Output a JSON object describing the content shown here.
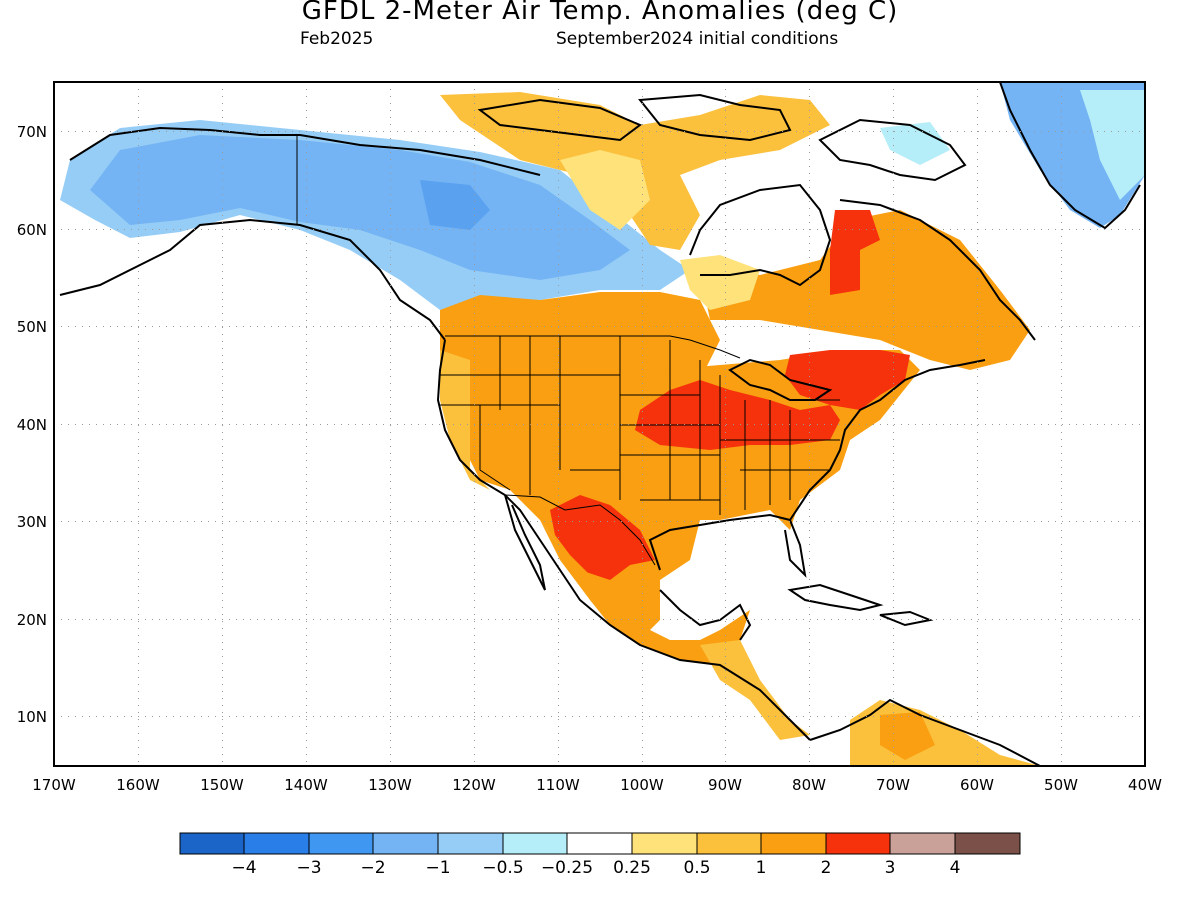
{
  "header": {
    "title": "GFDL 2-Meter Air Temp. Anomalies (deg C)",
    "valid_month": "Feb2025",
    "init": "September2024 initial conditions"
  },
  "map": {
    "lon_range": [
      -170,
      -40
    ],
    "lat_range": [
      5,
      75
    ],
    "lat_ticks": [
      "10N",
      "20N",
      "30N",
      "40N",
      "50N",
      "60N",
      "70N"
    ],
    "lon_ticks": [
      "170W",
      "160W",
      "150W",
      "140W",
      "130W",
      "120W",
      "110W",
      "100W",
      "90W",
      "80W",
      "70W",
      "60W",
      "50W",
      "40W"
    ],
    "grid": "dotted"
  },
  "colorbar": {
    "colors": [
      "#1b64c8",
      "#2a7ee8",
      "#3f97f2",
      "#74b4f4",
      "#96cdf6",
      "#b5eef8",
      "#ffffff",
      "#ffe27a",
      "#fbc03c",
      "#f99f11",
      "#f5320c",
      "#c9a198",
      "#7a5048"
    ],
    "labels": [
      "−4",
      "−3",
      "−2",
      "−1",
      "−0.5",
      "−0.25",
      "0.25",
      "0.5",
      "1",
      "2",
      "3",
      "4"
    ]
  },
  "anomaly_regions": [
    {
      "name": "alaska-yukon",
      "level": "-1"
    },
    {
      "name": "central-canada-north",
      "level": "-0.5"
    },
    {
      "name": "alaska-core",
      "level": "-2"
    },
    {
      "name": "greenland-west",
      "level": "-1"
    },
    {
      "name": "greenland-east",
      "level": "-0.25"
    },
    {
      "name": "western-us",
      "level": "1"
    },
    {
      "name": "eastern-us",
      "level": "1"
    },
    {
      "name": "ohio-valley",
      "level": "2"
    },
    {
      "name": "northeast",
      "level": "2"
    },
    {
      "name": "quebec",
      "level": "1"
    },
    {
      "name": "texas-mexico",
      "level": "2"
    },
    {
      "name": "mexico",
      "level": "1"
    },
    {
      "name": "arctic-islands",
      "level": "0.5"
    },
    {
      "name": "south-america-north",
      "level": "0.5"
    }
  ]
}
